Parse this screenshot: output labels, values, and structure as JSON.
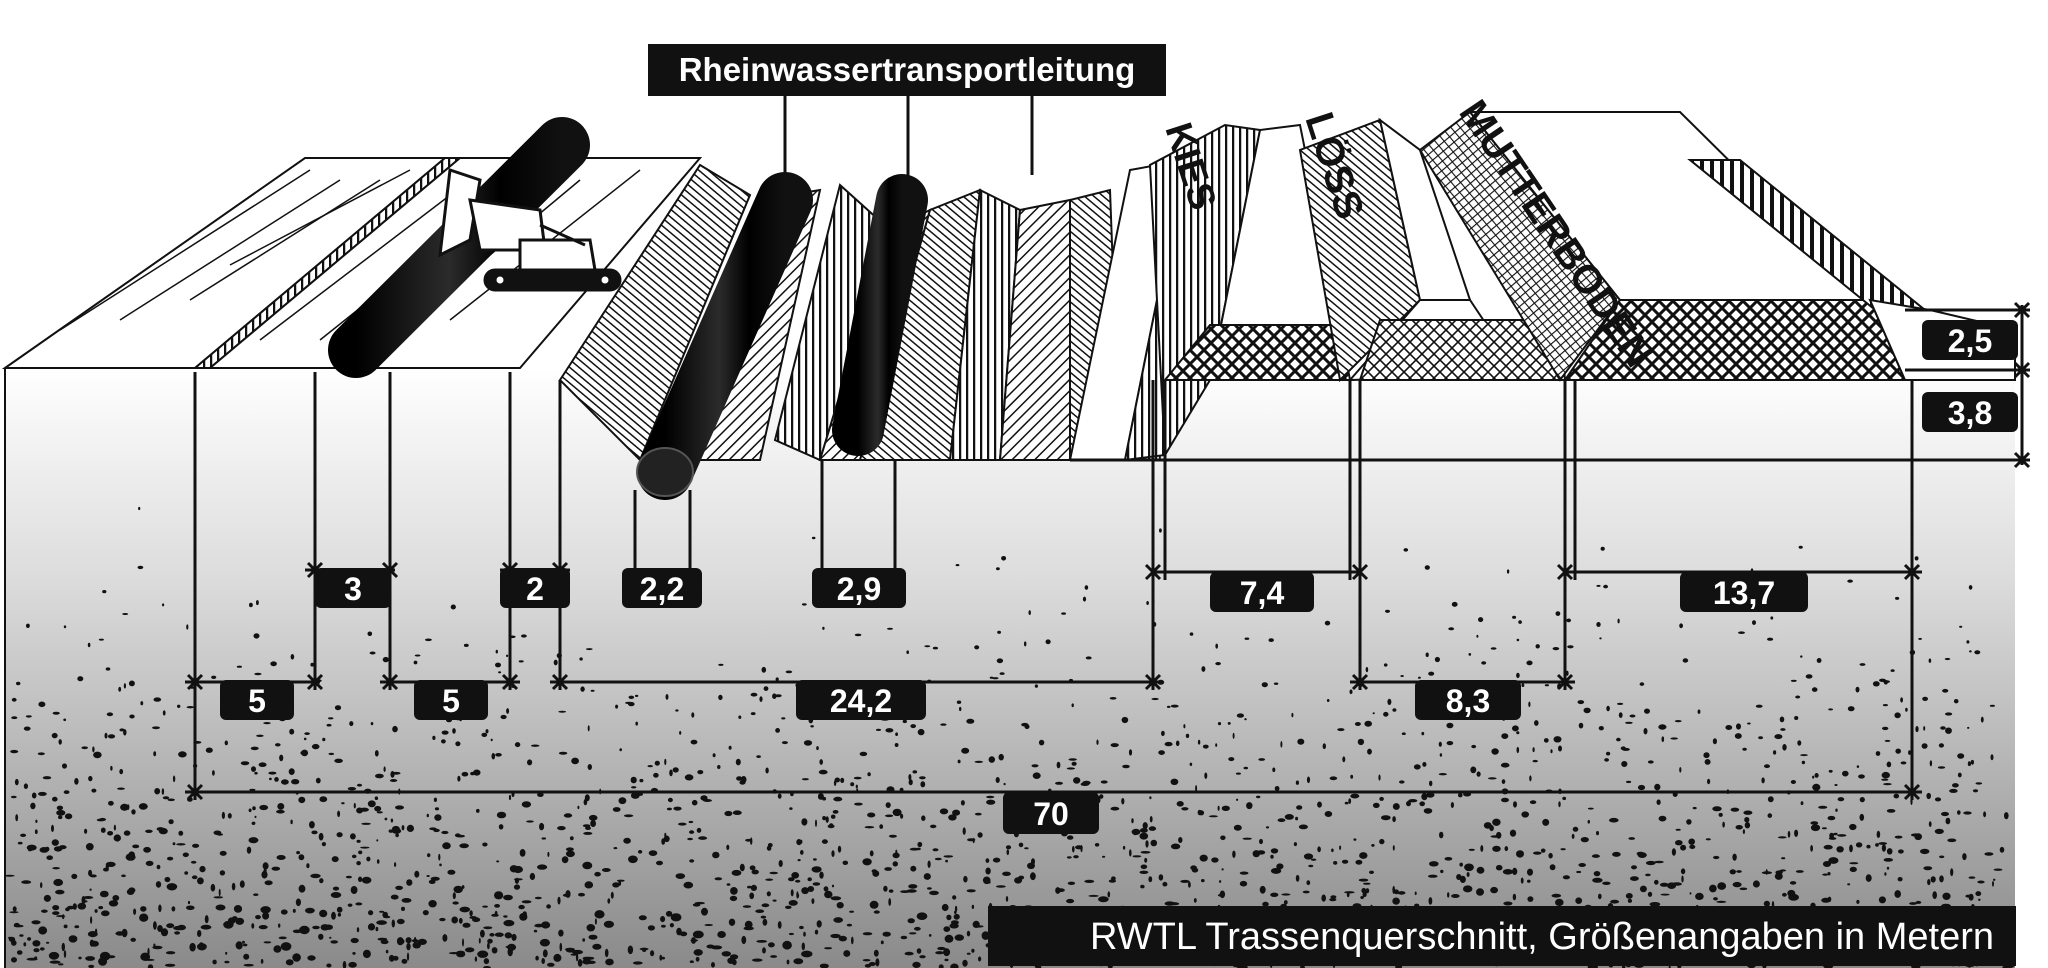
{
  "title": "Rheinwassertransportleitung",
  "caption": "RWTL Trassenquerschnitt, Größenangaben in Metern",
  "soil_labels": {
    "kies": "KIES",
    "loess": "LÖSS",
    "mutterboden": "MUTTERBODEN"
  },
  "dimensions": {
    "d3": "3",
    "d2": "2",
    "d22": "2,2",
    "d29": "2,9",
    "d74": "7,4",
    "d137": "13,7",
    "d5a": "5",
    "d5b": "5",
    "d242": "24,2",
    "d83": "8,3",
    "d70": "70",
    "d25": "2,5",
    "d38": "3,8"
  },
  "colors": {
    "ink": "#111111",
    "paper": "#ffffff",
    "ground_top": "#ffffff",
    "ground_bottom": "#8a8a8a"
  }
}
